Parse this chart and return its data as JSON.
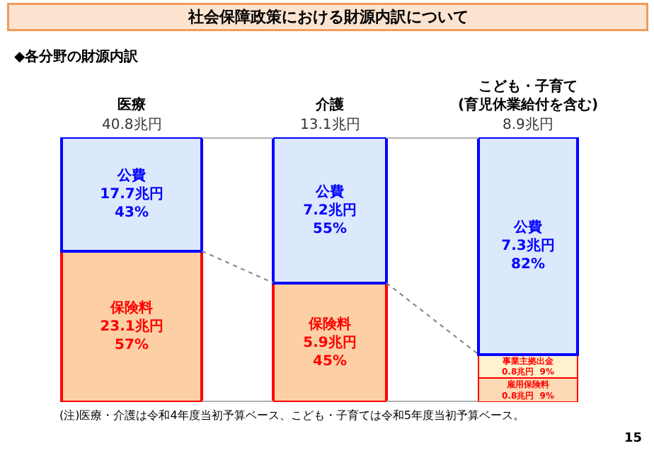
{
  "chart_data": {
    "type": "bar",
    "title": "社会保障政策における財源内訳について",
    "subtitle": "◆各分野の財源内訳",
    "categories": [
      "医療",
      "介護",
      "こども・子育て\n(育児休業給付を含む)"
    ],
    "stacked": true,
    "tick_labels": "x",
    "grid": false,
    "legend": false,
    "series": [
      {
        "name": "保険料",
        "color": "#fcd0a4",
        "values": [
          57,
          45,
          null
        ],
        "value_labels": [
          "23.1兆円\n57%",
          "5.9兆円\n45%",
          null
        ]
      },
      {
        "name": "雇用保険料",
        "color": "#fdd9b5",
        "values": [
          null,
          null,
          9
        ],
        "value_labels": [
          null,
          null,
          "0.8兆円  9%"
        ]
      },
      {
        "name": "事業主拠出金",
        "color": "#fff2cc",
        "values": [
          null,
          null,
          9
        ],
        "value_labels": [
          null,
          null,
          "0.8兆円  9%"
        ]
      },
      {
        "name": "公費",
        "color": "#dce8fb",
        "values": [
          43,
          55,
          82
        ],
        "value_labels": [
          "17.7兆円\n43%",
          "7.2兆円\n55%",
          "7.3兆円\n82%"
        ]
      }
    ],
    "annotations": [
      {
        "text": "40.8兆円",
        "x": "医療",
        "y": 100
      },
      {
        "text": "13.1兆円",
        "x": "介護",
        "y": 100
      },
      {
        "text": "8.9兆円",
        "x": "こども・子育て\n(育児休業給付を含む)",
        "y": 100
      },
      "(注)医療・介護は令和4年度当初予算ベース、こども・子育ては令和5年度当初予算ベース。",
      "15"
    ]
  }
}
